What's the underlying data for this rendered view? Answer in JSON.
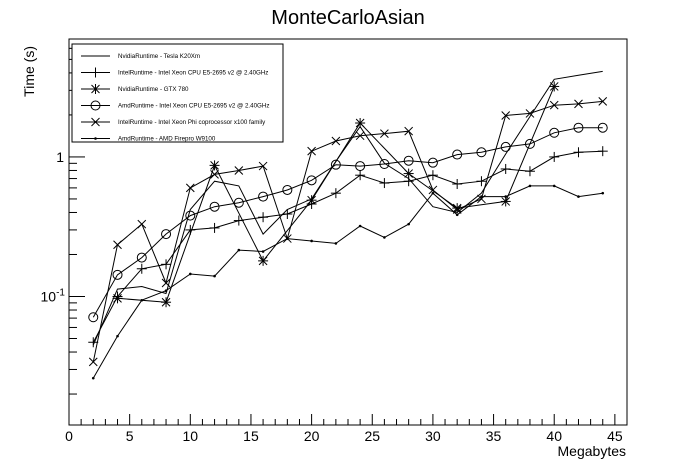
{
  "chart_data": {
    "type": "line",
    "title": "MonteCarloAsian",
    "xlabel": "Megabytes",
    "ylabel": "Time (s)",
    "xlim": [
      0,
      46
    ],
    "ylim": [
      0.012,
      7.0
    ],
    "y_scale": "log",
    "grid": false,
    "legend_position": "top-left",
    "x_ticks": [
      0,
      5,
      10,
      15,
      20,
      25,
      30,
      35,
      40,
      45
    ],
    "x_tick_labels": [
      "0",
      "5",
      "10",
      "15",
      "20",
      "25",
      "30",
      "35",
      "40",
      "45"
    ],
    "y_ticks": [
      0.1,
      1
    ],
    "y_tick_labels": [
      "10^-1",
      "1"
    ],
    "series": [
      {
        "name": "NvidiaRuntime - Tesla K20Xm",
        "marker": "none",
        "x": [
          2,
          4,
          6,
          8,
          10,
          12,
          14,
          16,
          18,
          20,
          22,
          24,
          26,
          28,
          30,
          32,
          34,
          36,
          38,
          40,
          42,
          44
        ],
        "y": [
          0.045,
          0.113,
          0.118,
          0.105,
          0.42,
          0.67,
          0.62,
          0.28,
          0.42,
          0.5,
          0.93,
          1.65,
          0.9,
          0.7,
          0.44,
          0.4,
          0.55,
          1.05,
          1.95,
          3.6,
          3.85,
          4.1
        ]
      },
      {
        "name": "IntelRuntime - Intel Xeon CPU E5-2695 v2 @ 2.40GHz",
        "marker": "plus",
        "x": [
          2,
          4,
          6,
          8,
          10,
          12,
          14,
          16,
          18,
          20,
          22,
          24,
          26,
          28,
          30,
          32,
          34,
          36,
          38,
          40,
          42,
          44
        ],
        "y": [
          0.047,
          0.1,
          0.158,
          0.17,
          0.3,
          0.31,
          0.35,
          0.37,
          0.39,
          0.46,
          0.55,
          0.74,
          0.65,
          0.67,
          0.74,
          0.64,
          0.67,
          0.82,
          0.79,
          1.0,
          1.08,
          1.1
        ]
      },
      {
        "name": "NvidiaRuntime - GTX 780",
        "marker": "star",
        "x": [
          4,
          8,
          12,
          16,
          20,
          24,
          28,
          32,
          36,
          40
        ],
        "y": [
          0.097,
          0.091,
          0.87,
          0.18,
          0.49,
          1.75,
          0.76,
          0.43,
          0.48,
          3.2
        ]
      },
      {
        "name": "AmdRuntime - Intel Xeon CPU E5-2695 v2 @ 2.40GHz",
        "marker": "circle",
        "x": [
          2,
          4,
          6,
          8,
          10,
          12,
          14,
          16,
          18,
          20,
          22,
          24,
          26,
          28,
          30,
          32,
          34,
          36,
          38,
          40,
          42,
          44
        ],
        "y": [
          0.071,
          0.143,
          0.19,
          0.28,
          0.38,
          0.44,
          0.47,
          0.52,
          0.58,
          0.68,
          0.88,
          0.86,
          0.89,
          0.94,
          0.91,
          1.04,
          1.08,
          1.18,
          1.24,
          1.49,
          1.62,
          1.62
        ]
      },
      {
        "name": "IntelRuntime - Intel Xeon Phi coprocessor x100 family",
        "marker": "x",
        "x": [
          2,
          4,
          6,
          8,
          10,
          12,
          14,
          16,
          18,
          20,
          22,
          24,
          26,
          28,
          30,
          32,
          34,
          36,
          38,
          40,
          42,
          44
        ],
        "y": [
          0.034,
          0.235,
          0.33,
          0.125,
          0.6,
          0.75,
          0.8,
          0.86,
          0.26,
          1.1,
          1.3,
          1.42,
          1.47,
          1.53,
          0.58,
          0.42,
          0.5,
          1.98,
          2.05,
          2.35,
          2.4,
          2.5
        ]
      },
      {
        "name": "AmdRuntime - AMD Firepro W9100",
        "marker": "dot",
        "x": [
          2,
          4,
          6,
          8,
          10,
          12,
          14,
          16,
          18,
          20,
          22,
          24,
          26,
          28,
          30,
          32,
          34,
          36,
          38,
          40,
          42,
          44
        ],
        "y": [
          0.026,
          0.052,
          0.094,
          0.11,
          0.145,
          0.14,
          0.215,
          0.21,
          0.26,
          0.25,
          0.24,
          0.32,
          0.265,
          0.33,
          0.55,
          0.385,
          0.52,
          0.52,
          0.62,
          0.62,
          0.52,
          0.55
        ]
      }
    ]
  }
}
